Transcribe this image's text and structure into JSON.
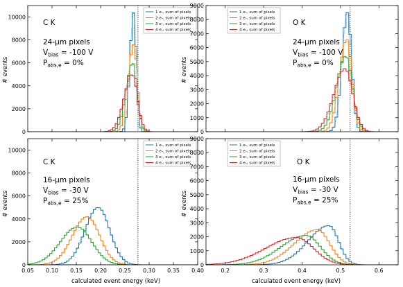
{
  "colors": {
    "1e": "#1f77b4",
    "2e": "#ff7f0e",
    "3e": "#2ca02c",
    "4e": "#d62728",
    "marker_line": "#000000"
  },
  "shared": {
    "ylabel": "# events",
    "xlabel": "calculated event energy (keV)"
  },
  "chart_data": [
    {
      "id": "top-left",
      "type": "line",
      "element": "C K",
      "pixel_text": "24-μm pixels",
      "vbias_text": "= -100 V",
      "pabs_text": "= 0%",
      "xlim": [
        0.05,
        0.4
      ],
      "ylim": [
        0,
        11000
      ],
      "x_ticks": [
        0.05,
        0.1,
        0.15,
        0.2,
        0.25,
        0.3,
        0.35,
        0.4
      ],
      "y_ticks": [
        0,
        2000,
        4000,
        6000,
        8000,
        10000
      ],
      "marker_x": 0.277,
      "legend": [
        "1 e-, sum of pixels",
        "2 e-, sum of pixels",
        "3 e-, sum of pixels",
        "4 e-, sum of pixels"
      ],
      "series": [
        {
          "name": "1 e-, sum of pixels",
          "color_key": "1e",
          "shape": "gauss",
          "peak": 10400,
          "mu": 0.268,
          "sigL": 0.0075,
          "sigR": 0.0055
        },
        {
          "name": "2 e-, sum of pixels",
          "color_key": "2e",
          "shape": "gauss",
          "peak": 7600,
          "mu": 0.268,
          "sigL": 0.011,
          "sigR": 0.0075
        },
        {
          "name": "3 e-, sum of pixels",
          "color_key": "3e",
          "shape": "gauss",
          "peak": 6000,
          "mu": 0.266,
          "sigL": 0.0135,
          "sigR": 0.009
        },
        {
          "name": "4 e-, sum of pixels",
          "color_key": "4e",
          "shape": "gauss",
          "peak": 5000,
          "mu": 0.265,
          "sigL": 0.0165,
          "sigR": 0.011
        }
      ]
    },
    {
      "id": "top-right",
      "type": "line",
      "element": "O K",
      "pixel_text": "24-μm pixels",
      "vbias_text": "= -100 V",
      "pabs_text": "= 0%",
      "xlim": [
        0.15,
        0.65
      ],
      "ylim": [
        0,
        9000
      ],
      "x_ticks": [
        0.2,
        0.3,
        0.4,
        0.5,
        0.6
      ],
      "y_ticks": [
        0,
        1000,
        2000,
        3000,
        4000,
        5000,
        6000,
        7000,
        8000,
        9000
      ],
      "marker_x": 0.525,
      "legend": [
        "1 e-, sum of pixels",
        "2 e-, sum of pixels",
        "3 e-, sum of pixels",
        "4 e-, sum of pixels"
      ],
      "series": [
        {
          "name": "1 e-, sum of pixels",
          "color_key": "1e",
          "shape": "gauss",
          "peak": 8500,
          "mu": 0.518,
          "sigL": 0.014,
          "sigR": 0.011
        },
        {
          "name": "2 e-, sum of pixels",
          "color_key": "2e",
          "shape": "gauss",
          "peak": 6600,
          "mu": 0.516,
          "sigL": 0.019,
          "sigR": 0.014
        },
        {
          "name": "3 e-, sum of pixels",
          "color_key": "3e",
          "shape": "gauss",
          "peak": 5400,
          "mu": 0.514,
          "sigL": 0.024,
          "sigR": 0.017
        },
        {
          "name": "4 e-, sum of pixels",
          "color_key": "4e",
          "shape": "gauss",
          "peak": 4500,
          "mu": 0.512,
          "sigL": 0.029,
          "sigR": 0.02
        }
      ]
    },
    {
      "id": "bottom-left",
      "type": "line",
      "element": "C K",
      "pixel_text": "16-μm pixels",
      "vbias_text": "= -30 V",
      "pabs_text": "= 25%",
      "xlim": [
        0.05,
        0.4
      ],
      "ylim": [
        0,
        11000
      ],
      "x_ticks": [
        0.05,
        0.1,
        0.15,
        0.2,
        0.25,
        0.3,
        0.35,
        0.4
      ],
      "y_ticks": [
        0,
        2000,
        4000,
        6000,
        8000,
        10000
      ],
      "marker_x": 0.277,
      "legend": [
        "1 e-, sum of pixels",
        "2 e-, sum of pixels",
        "3 e-, sum of pixels",
        "4 e-, sum of pixels"
      ],
      "series": [
        {
          "name": "1 e-, sum of pixels",
          "color_key": "1e",
          "shape": "gauss",
          "peak": 5000,
          "mu": 0.195,
          "sigL": 0.027,
          "sigR": 0.024
        },
        {
          "name": "2 e-, sum of pixels",
          "color_key": "2e",
          "shape": "gauss",
          "peak": 4200,
          "mu": 0.172,
          "sigL": 0.03,
          "sigR": 0.026
        },
        {
          "name": "3 e-, sum of pixels",
          "color_key": "3e",
          "shape": "gauss",
          "peak": 3300,
          "mu": 0.152,
          "sigL": 0.035,
          "sigR": 0.03
        },
        {
          "name": "4 e-, sum of pixels",
          "color_key": "4e",
          "shape": "gauss",
          "peak": 0,
          "mu": 0.15,
          "sigL": 0.03,
          "sigR": 0.03
        }
      ]
    },
    {
      "id": "bottom-right",
      "type": "line",
      "element": "O K",
      "pixel_text": "16-μm pixels",
      "vbias_text": "= -30 V",
      "pabs_text": "= 25%",
      "xlim": [
        0.15,
        0.65
      ],
      "ylim": [
        0,
        9000
      ],
      "x_ticks": [
        0.2,
        0.3,
        0.4,
        0.5,
        0.6
      ],
      "y_ticks": [
        0,
        1000,
        2000,
        3000,
        4000,
        5000,
        6000,
        7000,
        8000,
        9000
      ],
      "marker_x": 0.525,
      "legend": [
        "1 e-, sum of pixels",
        "2 e-, sum of pixels",
        "3 e-, sum of pixels",
        "4 e-, sum of pixels"
      ],
      "series": [
        {
          "name": "1 e-, sum of pixels",
          "color_key": "1e",
          "shape": "gauss",
          "peak": 2800,
          "mu": 0.47,
          "sigL": 0.055,
          "sigR": 0.025
        },
        {
          "name": "2 e-, sum of pixels",
          "color_key": "2e",
          "shape": "gauss",
          "peak": 2500,
          "mu": 0.44,
          "sigL": 0.06,
          "sigR": 0.032
        },
        {
          "name": "3 e-, sum of pixels",
          "color_key": "3e",
          "shape": "gauss",
          "peak": 2100,
          "mu": 0.41,
          "sigL": 0.065,
          "sigR": 0.038
        },
        {
          "name": "4 e-, sum of pixels",
          "color_key": "4e",
          "shape": "gauss",
          "peak": 1950,
          "mu": 0.385,
          "sigL": 0.08,
          "sigR": 0.045
        }
      ]
    }
  ]
}
